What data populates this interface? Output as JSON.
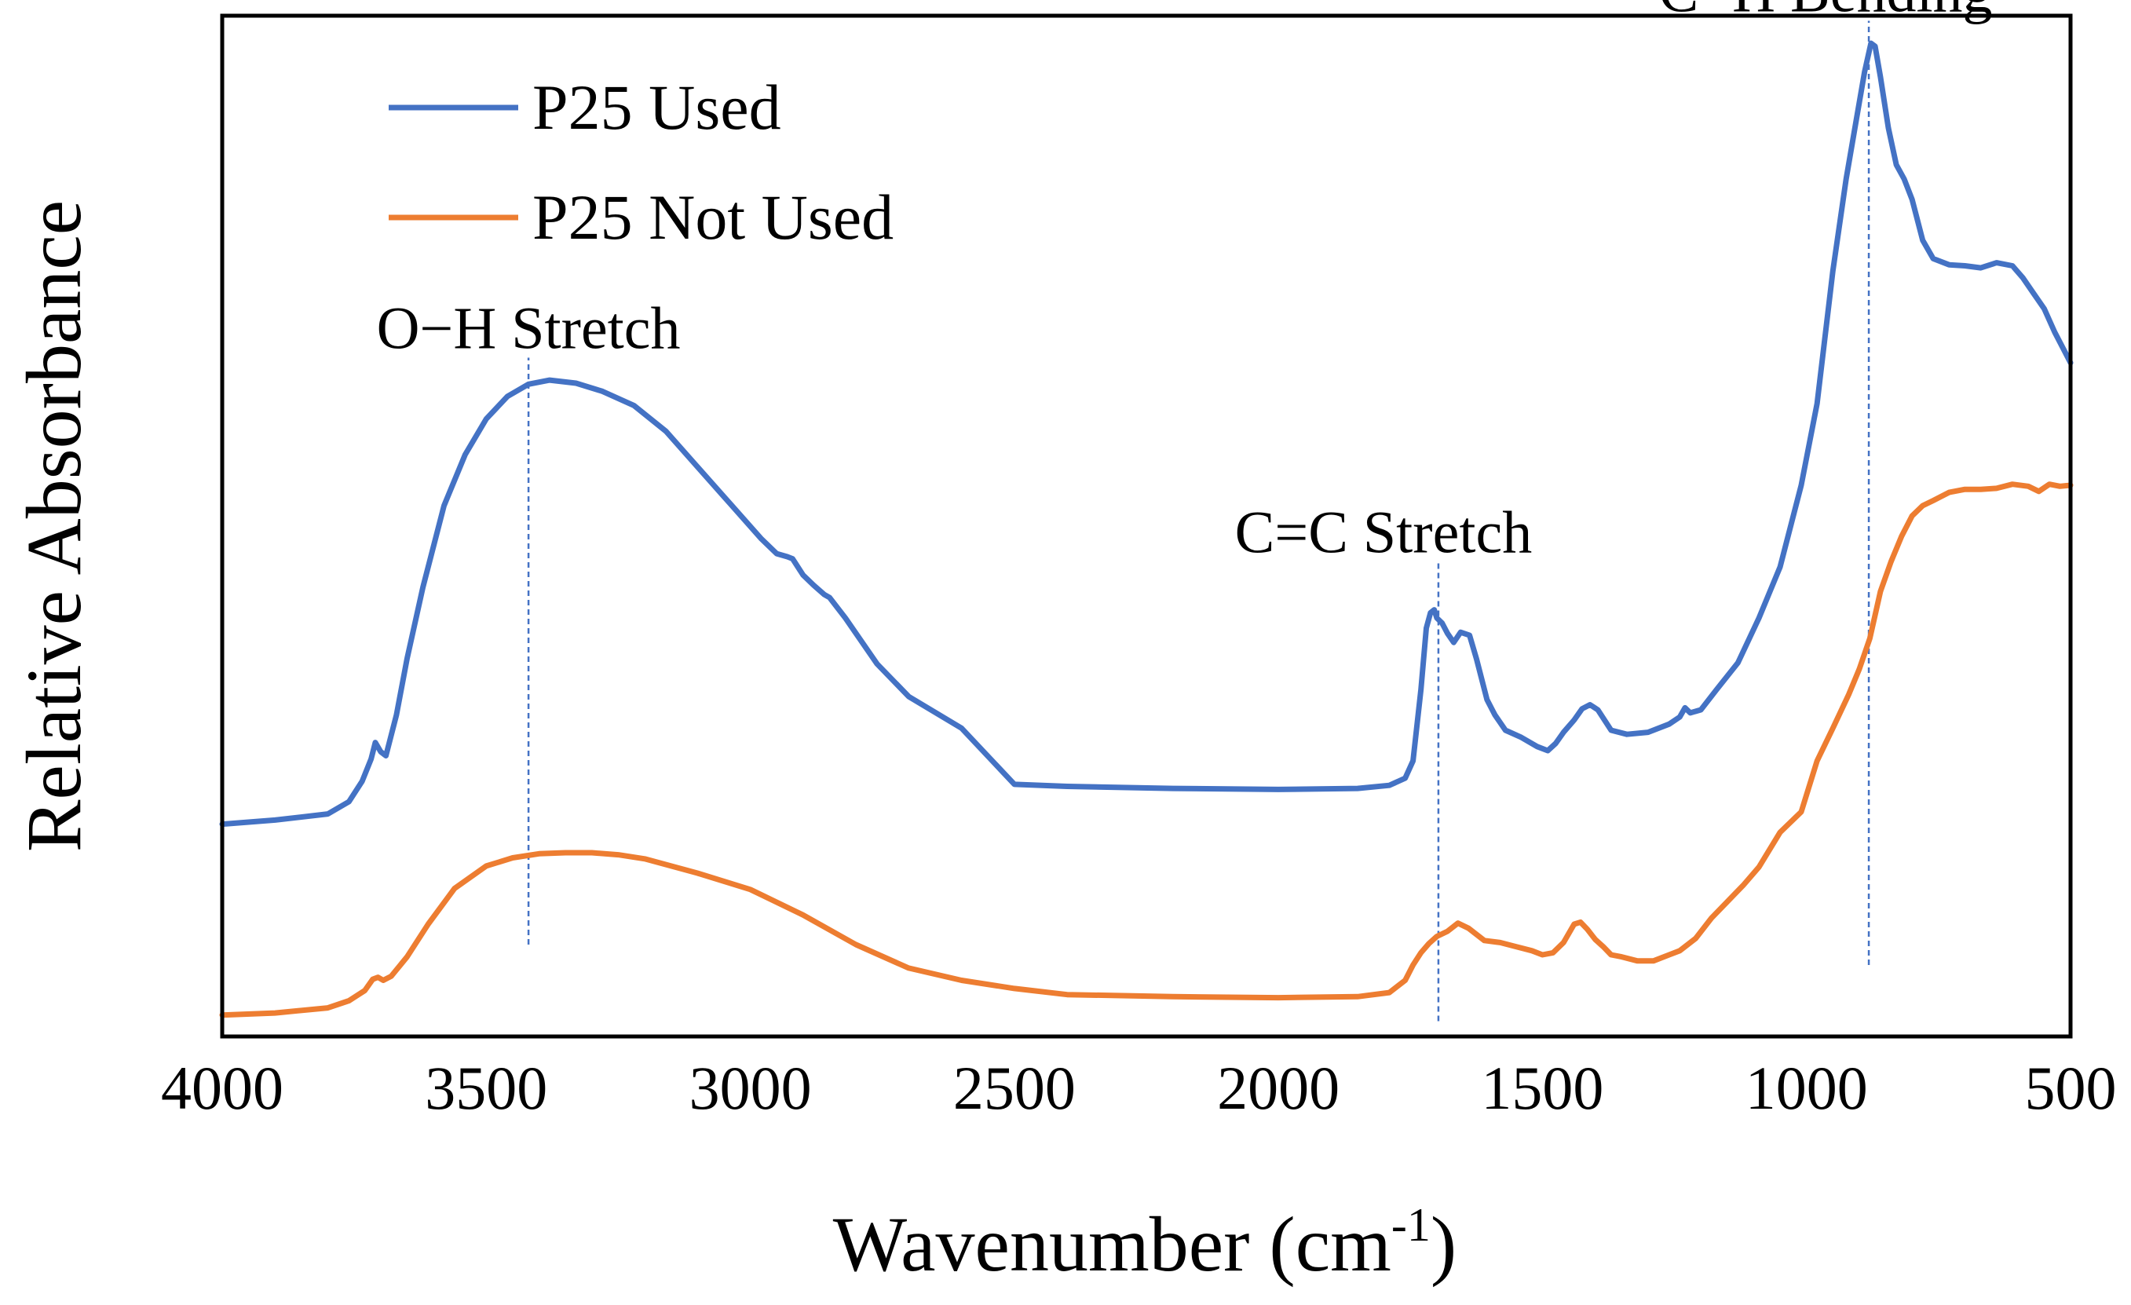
{
  "chart_data": {
    "type": "line",
    "title": "",
    "xlabel_main": "Wavenumber  (cm",
    "xlabel_sup": "-1",
    "xlabel_end": ")",
    "ylabel": "Relative Absorbance",
    "xlim": [
      4000,
      500
    ],
    "ylim": [
      0,
      100
    ],
    "x_reversed": true,
    "y_ticks_shown": false,
    "xticks": [
      4000,
      3500,
      3000,
      2500,
      2000,
      1500,
      1000,
      500
    ],
    "xtick_labels": [
      "4000",
      "3500",
      "3000",
      "2500",
      "2000",
      "1500",
      "1000",
      "500"
    ],
    "legend_position": "top-left",
    "series": [
      {
        "name": "P25 Used",
        "color": "#4472C4",
        "points": [
          [
            4000,
            20.8
          ],
          [
            3900,
            21.2
          ],
          [
            3800,
            21.8
          ],
          [
            3760,
            23.0
          ],
          [
            3735,
            25.0
          ],
          [
            3718,
            27.2
          ],
          [
            3710,
            28.8
          ],
          [
            3700,
            27.9
          ],
          [
            3690,
            27.5
          ],
          [
            3670,
            31.5
          ],
          [
            3650,
            37.0
          ],
          [
            3620,
            44.0
          ],
          [
            3580,
            52.0
          ],
          [
            3540,
            57.0
          ],
          [
            3500,
            60.5
          ],
          [
            3460,
            62.7
          ],
          [
            3420,
            63.9
          ],
          [
            3380,
            64.3
          ],
          [
            3330,
            64.0
          ],
          [
            3280,
            63.2
          ],
          [
            3220,
            61.8
          ],
          [
            3160,
            59.3
          ],
          [
            3100,
            55.8
          ],
          [
            3040,
            52.3
          ],
          [
            2980,
            48.8
          ],
          [
            2950,
            47.3
          ],
          [
            2930,
            47.0
          ],
          [
            2920,
            46.8
          ],
          [
            2900,
            45.2
          ],
          [
            2880,
            44.2
          ],
          [
            2860,
            43.3
          ],
          [
            2850,
            43.0
          ],
          [
            2820,
            41.0
          ],
          [
            2760,
            36.5
          ],
          [
            2700,
            33.3
          ],
          [
            2600,
            30.2
          ],
          [
            2500,
            24.7
          ],
          [
            2400,
            24.5
          ],
          [
            2200,
            24.3
          ],
          [
            2000,
            24.2
          ],
          [
            1850,
            24.3
          ],
          [
            1790,
            24.6
          ],
          [
            1760,
            25.3
          ],
          [
            1745,
            27.0
          ],
          [
            1730,
            34.0
          ],
          [
            1720,
            40.0
          ],
          [
            1712,
            41.5
          ],
          [
            1705,
            41.8
          ],
          [
            1700,
            41.0
          ],
          [
            1690,
            40.5
          ],
          [
            1680,
            39.5
          ],
          [
            1668,
            38.6
          ],
          [
            1655,
            39.6
          ],
          [
            1638,
            39.3
          ],
          [
            1625,
            37.0
          ],
          [
            1605,
            33.0
          ],
          [
            1590,
            31.5
          ],
          [
            1570,
            30.0
          ],
          [
            1540,
            29.3
          ],
          [
            1510,
            28.4
          ],
          [
            1490,
            28.0
          ],
          [
            1475,
            28.7
          ],
          [
            1460,
            29.8
          ],
          [
            1440,
            31.0
          ],
          [
            1425,
            32.1
          ],
          [
            1410,
            32.5
          ],
          [
            1395,
            32.0
          ],
          [
            1370,
            30.0
          ],
          [
            1340,
            29.6
          ],
          [
            1300,
            29.8
          ],
          [
            1260,
            30.6
          ],
          [
            1240,
            31.3
          ],
          [
            1230,
            32.2
          ],
          [
            1220,
            31.7
          ],
          [
            1200,
            32.0
          ],
          [
            1170,
            34.0
          ],
          [
            1130,
            36.6
          ],
          [
            1090,
            41.0
          ],
          [
            1050,
            46.0
          ],
          [
            1010,
            54.0
          ],
          [
            980,
            62.0
          ],
          [
            950,
            75.0
          ],
          [
            925,
            84.0
          ],
          [
            905,
            90.0
          ],
          [
            890,
            94.5
          ],
          [
            878,
            97.3
          ],
          [
            870,
            97.0
          ],
          [
            860,
            94.0
          ],
          [
            845,
            89.0
          ],
          [
            830,
            85.4
          ],
          [
            815,
            84.0
          ],
          [
            800,
            82.0
          ],
          [
            780,
            78.0
          ],
          [
            760,
            76.2
          ],
          [
            730,
            75.6
          ],
          [
            700,
            75.5
          ],
          [
            670,
            75.3
          ],
          [
            640,
            75.8
          ],
          [
            610,
            75.5
          ],
          [
            590,
            74.3
          ],
          [
            570,
            72.8
          ],
          [
            550,
            71.3
          ],
          [
            530,
            69.0
          ],
          [
            510,
            67.0
          ],
          [
            500,
            66.0
          ]
        ]
      },
      {
        "name": "P25 Not Used",
        "color": "#ED7D31",
        "points": [
          [
            4000,
            2.1
          ],
          [
            3900,
            2.3
          ],
          [
            3800,
            2.8
          ],
          [
            3760,
            3.5
          ],
          [
            3730,
            4.5
          ],
          [
            3715,
            5.6
          ],
          [
            3705,
            5.8
          ],
          [
            3695,
            5.5
          ],
          [
            3680,
            5.9
          ],
          [
            3650,
            7.8
          ],
          [
            3610,
            11.0
          ],
          [
            3560,
            14.5
          ],
          [
            3500,
            16.7
          ],
          [
            3450,
            17.5
          ],
          [
            3400,
            17.9
          ],
          [
            3350,
            18.0
          ],
          [
            3300,
            18.0
          ],
          [
            3250,
            17.8
          ],
          [
            3200,
            17.4
          ],
          [
            3150,
            16.7
          ],
          [
            3100,
            16.0
          ],
          [
            3000,
            14.4
          ],
          [
            2900,
            11.9
          ],
          [
            2800,
            9.0
          ],
          [
            2700,
            6.7
          ],
          [
            2600,
            5.5
          ],
          [
            2500,
            4.7
          ],
          [
            2400,
            4.1
          ],
          [
            2200,
            3.9
          ],
          [
            2000,
            3.8
          ],
          [
            1850,
            3.9
          ],
          [
            1790,
            4.3
          ],
          [
            1760,
            5.5
          ],
          [
            1745,
            7.0
          ],
          [
            1730,
            8.2
          ],
          [
            1715,
            9.1
          ],
          [
            1700,
            9.8
          ],
          [
            1680,
            10.3
          ],
          [
            1660,
            11.1
          ],
          [
            1640,
            10.6
          ],
          [
            1610,
            9.4
          ],
          [
            1580,
            9.2
          ],
          [
            1550,
            8.8
          ],
          [
            1520,
            8.4
          ],
          [
            1500,
            8.0
          ],
          [
            1480,
            8.2
          ],
          [
            1460,
            9.2
          ],
          [
            1440,
            11.0
          ],
          [
            1428,
            11.2
          ],
          [
            1415,
            10.5
          ],
          [
            1400,
            9.5
          ],
          [
            1385,
            8.8
          ],
          [
            1370,
            8.0
          ],
          [
            1350,
            7.8
          ],
          [
            1320,
            7.4
          ],
          [
            1290,
            7.4
          ],
          [
            1260,
            8.0
          ],
          [
            1240,
            8.4
          ],
          [
            1210,
            9.6
          ],
          [
            1180,
            11.6
          ],
          [
            1150,
            13.2
          ],
          [
            1120,
            14.8
          ],
          [
            1090,
            16.6
          ],
          [
            1050,
            20.0
          ],
          [
            1010,
            22.0
          ],
          [
            980,
            27.0
          ],
          [
            950,
            30.2
          ],
          [
            920,
            33.5
          ],
          [
            900,
            36.0
          ],
          [
            880,
            39.0
          ],
          [
            860,
            43.6
          ],
          [
            840,
            46.5
          ],
          [
            820,
            49.0
          ],
          [
            800,
            51.0
          ],
          [
            780,
            52.0
          ],
          [
            760,
            52.5
          ],
          [
            730,
            53.3
          ],
          [
            700,
            53.6
          ],
          [
            670,
            53.6
          ],
          [
            640,
            53.7
          ],
          [
            610,
            54.1
          ],
          [
            580,
            53.9
          ],
          [
            560,
            53.4
          ],
          [
            540,
            54.1
          ],
          [
            520,
            53.9
          ],
          [
            500,
            54.0
          ]
        ]
      }
    ],
    "annotations": [
      {
        "text": "O−H Stretch",
        "x": 3420,
        "line_from": 9.0,
        "line_to": 66.5
      },
      {
        "text": "C=C Stretch",
        "x": 1697,
        "line_from": 1.5,
        "line_to": 46.5
      },
      {
        "text": "C−H Bending",
        "x": 882,
        "line_from": 7.0,
        "line_to": 99.5
      }
    ]
  }
}
